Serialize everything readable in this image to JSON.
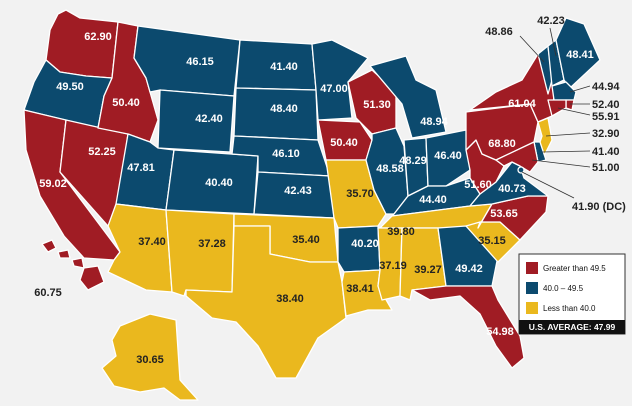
{
  "colors": {
    "high": "#a01c24",
    "mid": "#0c4a6e",
    "low": "#eab81e",
    "background": "#f2f2f2",
    "avg_box": "#111111"
  },
  "legend": {
    "items": [
      {
        "label": "Greater than 49.5",
        "color_key": "high"
      },
      {
        "label": "40.0 – 49.5",
        "color_key": "mid"
      },
      {
        "label": "Less than 40.0",
        "color_key": "low"
      }
    ],
    "average": "U.S. AVERAGE: 47.99"
  },
  "states": {
    "WA": {
      "value": "62.90",
      "category": "high"
    },
    "OR": {
      "value": "49.50",
      "category": "mid"
    },
    "CA": {
      "value": "59.02",
      "category": "high"
    },
    "NV": {
      "value": "52.25",
      "category": "high"
    },
    "ID": {
      "value": "50.40",
      "category": "high"
    },
    "MT": {
      "value": "46.15",
      "category": "mid"
    },
    "WY": {
      "value": "42.40",
      "category": "mid"
    },
    "UT": {
      "value": "47.81",
      "category": "mid"
    },
    "CO": {
      "value": "40.40",
      "category": "mid"
    },
    "AZ": {
      "value": "37.40",
      "category": "low"
    },
    "NM": {
      "value": "37.28",
      "category": "low"
    },
    "ND": {
      "value": "41.40",
      "category": "mid"
    },
    "SD": {
      "value": "48.40",
      "category": "mid"
    },
    "NE": {
      "value": "46.10",
      "category": "mid"
    },
    "KS": {
      "value": "42.43",
      "category": "mid"
    },
    "OK": {
      "value": "35.40",
      "category": "low"
    },
    "TX": {
      "value": "38.40",
      "category": "low"
    },
    "MN": {
      "value": "47.00",
      "category": "mid"
    },
    "IA": {
      "value": "50.40",
      "category": "high"
    },
    "MO": {
      "value": "35.70",
      "category": "low"
    },
    "AR": {
      "value": "40.20",
      "category": "mid"
    },
    "LA": {
      "value": "38.41",
      "category": "low"
    },
    "WI": {
      "value": "51.30",
      "category": "high"
    },
    "IL": {
      "value": "48.58",
      "category": "mid"
    },
    "MI": {
      "value": "48.94",
      "category": "mid"
    },
    "IN": {
      "value": "48.29",
      "category": "mid"
    },
    "OH": {
      "value": "46.40",
      "category": "mid"
    },
    "KY": {
      "value": "44.40",
      "category": "mid"
    },
    "TN": {
      "value": "39.80",
      "category": "low"
    },
    "MS": {
      "value": "37.19",
      "category": "low"
    },
    "AL": {
      "value": "39.27",
      "category": "low"
    },
    "GA": {
      "value": "49.42",
      "category": "mid"
    },
    "FL": {
      "value": "54.98",
      "category": "high"
    },
    "SC": {
      "value": "35.15",
      "category": "low"
    },
    "NC": {
      "value": "53.65",
      "category": "high"
    },
    "VA": {
      "value": "40.73",
      "category": "mid"
    },
    "WV": {
      "value": "51.60",
      "category": "high"
    },
    "PA": {
      "value": "68.80",
      "category": "high"
    },
    "NY": {
      "value": "61.04",
      "category": "high"
    },
    "VT": {
      "value": "48.86",
      "category": "mid"
    },
    "NH": {
      "value": "42.23",
      "category": "mid"
    },
    "ME": {
      "value": "48.41",
      "category": "mid"
    },
    "MA": {
      "value": "44.94",
      "category": "mid"
    },
    "RI": {
      "value": "52.40",
      "category": "high"
    },
    "CT": {
      "value": "55.91",
      "category": "high"
    },
    "NJ": {
      "value": "32.90",
      "category": "low"
    },
    "DE": {
      "value": "41.40",
      "category": "mid"
    },
    "MD": {
      "value": "51.00",
      "category": "high"
    },
    "DC": {
      "value": "41.90 (DC)",
      "category": "mid"
    },
    "AK": {
      "value": "30.65",
      "category": "low"
    },
    "HI": {
      "value": "60.75",
      "category": "high"
    }
  }
}
